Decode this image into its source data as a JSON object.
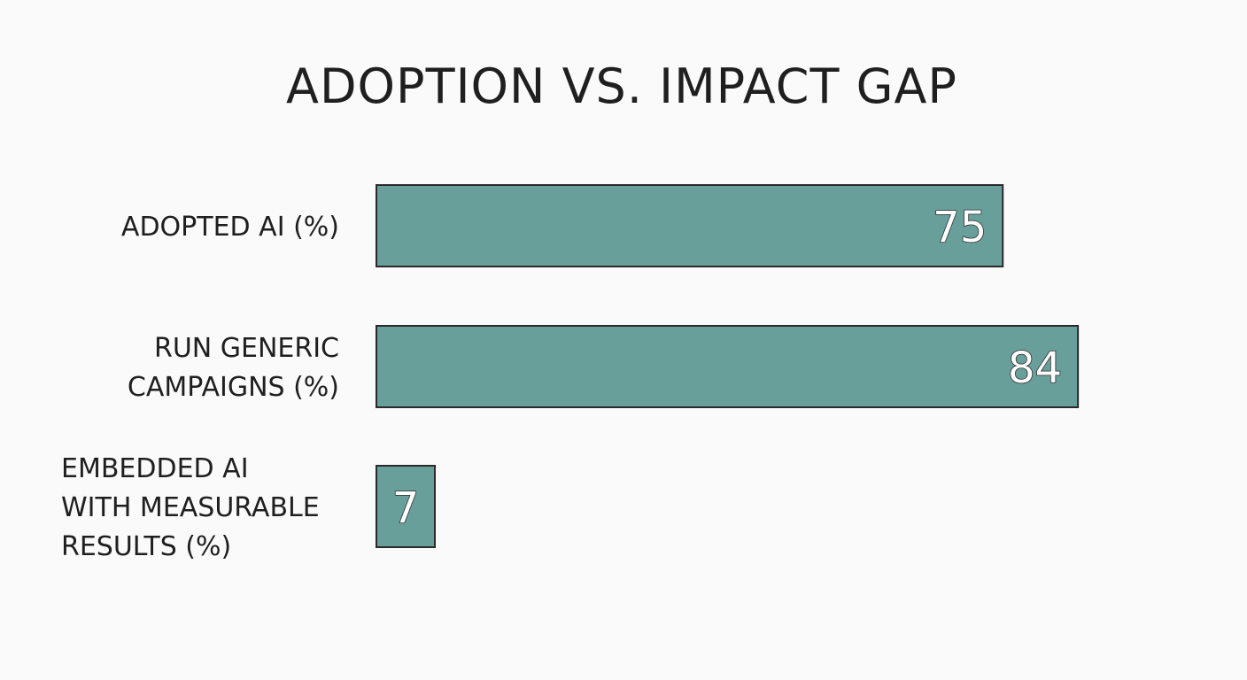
{
  "chart_data": {
    "type": "bar",
    "orientation": "horizontal",
    "title": "ADOPTION VS. IMPACT GAP",
    "categories": [
      "ADOPTED AI (%)",
      "RUN GENERIC CAMPAIGNS (%)",
      "EMBEDDED AI WITH MEASURABLE RESULTS (%)"
    ],
    "category_lines": [
      [
        "ADOPTED AI (%)"
      ],
      [
        "RUN GENERIC",
        "CAMPAIGNS (%)"
      ],
      [
        "EMBEDDED AI",
        "WITH MEASURABLE",
        "RESULTS (%)"
      ]
    ],
    "values": [
      75,
      84,
      7
    ],
    "xlim": [
      0,
      100
    ],
    "grid": false,
    "legend": "none",
    "data_labels": true,
    "colors": {
      "bar_fill": "#689f9a",
      "bar_stroke": "#2a2a2a",
      "label_fill": "#ffffff",
      "label_outline": "#2e2e2e",
      "text": "#1f1f1f",
      "background": "#fafafa"
    }
  }
}
